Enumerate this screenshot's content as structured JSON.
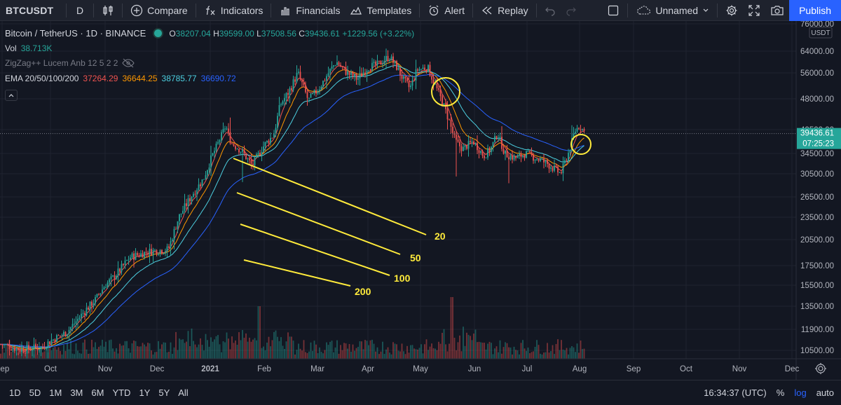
{
  "toolbar": {
    "symbol": "BTCUSDT",
    "interval": "D",
    "compare": "Compare",
    "indicators": "Indicators",
    "financials": "Financials",
    "templates": "Templates",
    "alert": "Alert",
    "replay": "Replay",
    "layout_name": "Unnamed",
    "publish": "Publish"
  },
  "legend": {
    "title": "Bitcoin / TetherUS · 1D · BINANCE",
    "o_label": "O",
    "o": "38207.04",
    "h_label": "H",
    "h": "39599.00",
    "l_label": "L",
    "l": "37508.56",
    "c_label": "C",
    "c": "39436.61",
    "change": "+1229.56 (+3.22%)",
    "vol_label": "Vol",
    "vol": "38.713K",
    "zigzag": "ZigZag++ Lucem Anb 12 5 2 2",
    "ema_label": "EMA 20/50/100/200",
    "ema20": "37264.29",
    "ema50": "36644.25",
    "ema100": "38785.77",
    "ema200": "36690.72"
  },
  "colors": {
    "bg": "#131722",
    "up": "#26a69a",
    "down": "#ef5350",
    "ema20": "#ef5350",
    "ema50": "#ff9800",
    "ema100": "#4dd0e1",
    "ema200": "#2962ff",
    "annotation": "#ffeb3b"
  },
  "chart_data": {
    "type": "candlestick",
    "symbol": "Bitcoin / TetherUS",
    "interval": "1D",
    "exchange": "BINANCE",
    "price_scale": "log",
    "currency": "USDT",
    "ylim": [
      9600,
      80000
    ],
    "y_ticks": [
      76000,
      64000,
      56000,
      48000,
      40500,
      34500,
      30500,
      26500,
      23500,
      20500,
      17500,
      15500,
      13500,
      11900,
      10500
    ],
    "x_ticks": [
      "Sep",
      "Oct",
      "Nov",
      "Dec",
      "2021",
      "Feb",
      "Mar",
      "Apr",
      "May",
      "Jun",
      "Jul",
      "Aug",
      "Sep",
      "Oct",
      "Nov",
      "Dec"
    ],
    "last_price": "39436.61",
    "countdown": "07:25:23",
    "price_series_monthly": [
      {
        "month": "Sep 2020",
        "close": 10800
      },
      {
        "month": "Oct 2020",
        "close": 13800
      },
      {
        "month": "Nov 2020",
        "close": 19700
      },
      {
        "month": "Dec 2020",
        "close": 29000
      },
      {
        "month": "Jan 2021",
        "close": 33100
      },
      {
        "month": "Feb 2021",
        "close": 45200
      },
      {
        "month": "Mar 2021",
        "close": 58900
      },
      {
        "month": "Apr 2021",
        "close": 57700
      },
      {
        "month": "May 2021",
        "close": 37300
      },
      {
        "month": "Jun 2021",
        "close": 35000
      },
      {
        "month": "Jul 2021",
        "close": 41400
      },
      {
        "month": "Aug 2021",
        "close": 39436.61
      }
    ],
    "annotations": [
      "20",
      "50",
      "100",
      "200"
    ]
  },
  "bottom": {
    "ranges": [
      "1D",
      "5D",
      "1M",
      "3M",
      "6M",
      "YTD",
      "1Y",
      "5Y",
      "All"
    ],
    "clock": "16:34:37 (UTC)",
    "percent": "%",
    "log": "log",
    "auto": "auto"
  }
}
